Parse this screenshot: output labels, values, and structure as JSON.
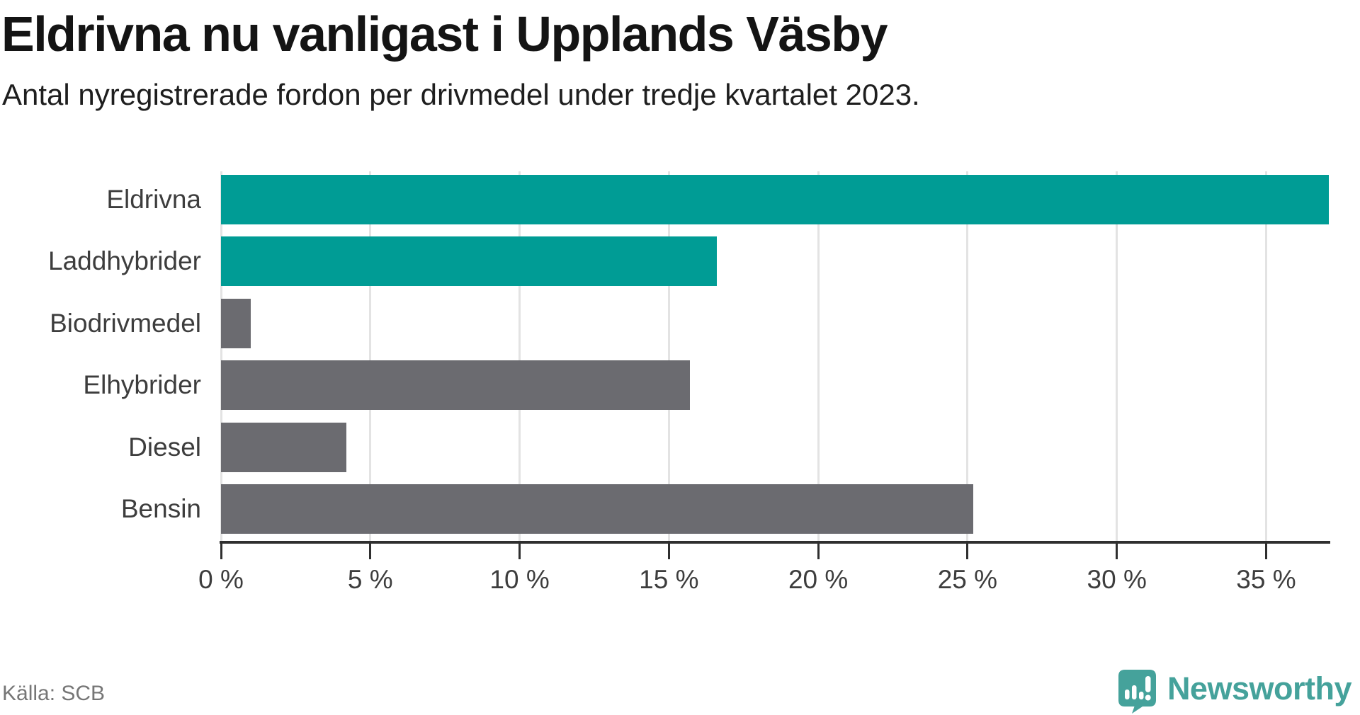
{
  "header": {
    "title": "Eldrivna nu vanligast i Upplands Väsby",
    "subtitle": "Antal nyregistrerade fordon per drivmedel under tredje kvartalet 2023."
  },
  "footer": {
    "source": "Källa: SCB",
    "brand": "Newsworthy"
  },
  "colors": {
    "accent_teal": "#009c95",
    "bar_gray": "#6b6b70",
    "grid": "#e3e3e3",
    "axis": "#2f2f2f",
    "brand_teal": "#45a29b"
  },
  "chart_data": {
    "type": "bar",
    "orientation": "horizontal",
    "title": "Eldrivna nu vanligast i Upplands Väsby",
    "subtitle": "Antal nyregistrerade fordon per drivmedel under tredje kvartalet 2023.",
    "categories": [
      "Eldrivna",
      "Laddhybrider",
      "Biodrivmedel",
      "Elhybrider",
      "Diesel",
      "Bensin"
    ],
    "values": [
      37.1,
      16.6,
      1.0,
      15.7,
      4.2,
      25.2
    ],
    "unit": "%",
    "bar_colors": [
      "#009c95",
      "#009c95",
      "#6b6b70",
      "#6b6b70",
      "#6b6b70",
      "#6b6b70"
    ],
    "xlim": [
      0,
      37.1
    ],
    "xticks": [
      {
        "value": 0,
        "label": "0 %"
      },
      {
        "value": 5,
        "label": "5 %"
      },
      {
        "value": 10,
        "label": "10 %"
      },
      {
        "value": 15,
        "label": "15 %"
      },
      {
        "value": 20,
        "label": "20 %"
      },
      {
        "value": 25,
        "label": "25 %"
      },
      {
        "value": 30,
        "label": "30 %"
      },
      {
        "value": 35,
        "label": "35 %"
      }
    ],
    "grid": "vertical",
    "legend": "none"
  }
}
